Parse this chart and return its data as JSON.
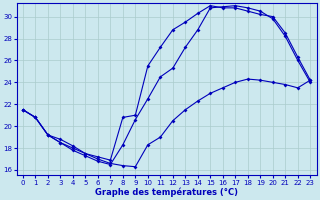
{
  "title": "Graphe des températures (°C)",
  "background_color": "#cce8ee",
  "grid_color": "#aacccc",
  "line_color": "#0000bb",
  "xlim": [
    -0.5,
    23.5
  ],
  "ylim": [
    15.5,
    31.2
  ],
  "yticks": [
    16,
    18,
    20,
    22,
    24,
    26,
    28,
    30
  ],
  "xticks": [
    0,
    1,
    2,
    3,
    4,
    5,
    6,
    7,
    8,
    9,
    10,
    11,
    12,
    13,
    14,
    15,
    16,
    17,
    18,
    19,
    20,
    21,
    22,
    23
  ],
  "curve1_x": [
    0,
    1,
    2,
    3,
    4,
    5,
    6,
    7,
    8,
    9,
    10,
    11,
    12,
    13,
    14,
    15,
    16,
    17,
    18,
    19,
    20,
    21,
    22,
    23
  ],
  "curve1_y": [
    21.5,
    20.8,
    19.2,
    18.8,
    18.2,
    17.5,
    17.0,
    16.6,
    16.4,
    16.3,
    18.3,
    19.0,
    20.5,
    21.5,
    22.3,
    23.0,
    23.5,
    24.0,
    24.3,
    24.2,
    24.0,
    23.8,
    23.5,
    24.2
  ],
  "curve2_x": [
    0,
    1,
    2,
    3,
    4,
    5,
    6,
    7,
    8,
    9,
    10,
    11,
    12,
    13,
    14,
    15,
    16,
    17,
    18,
    19,
    20,
    21,
    22,
    23
  ],
  "curve2_y": [
    21.5,
    20.8,
    19.2,
    18.5,
    18.0,
    17.5,
    17.2,
    16.9,
    20.8,
    21.0,
    25.5,
    27.2,
    28.8,
    29.5,
    30.3,
    31.0,
    30.8,
    30.8,
    30.5,
    30.2,
    30.0,
    28.5,
    26.3,
    24.2
  ],
  "curve3_x": [
    0,
    1,
    2,
    3,
    4,
    5,
    6,
    7,
    8,
    9,
    10,
    11,
    12,
    13,
    14,
    15,
    16,
    17,
    18,
    19,
    20,
    21,
    22,
    23
  ],
  "curve3_y": [
    21.5,
    20.8,
    19.2,
    18.5,
    17.8,
    17.3,
    16.8,
    16.5,
    18.3,
    20.6,
    22.5,
    24.5,
    25.3,
    27.2,
    28.8,
    30.8,
    30.9,
    31.0,
    30.8,
    30.5,
    29.8,
    28.2,
    26.0,
    24.0
  ]
}
